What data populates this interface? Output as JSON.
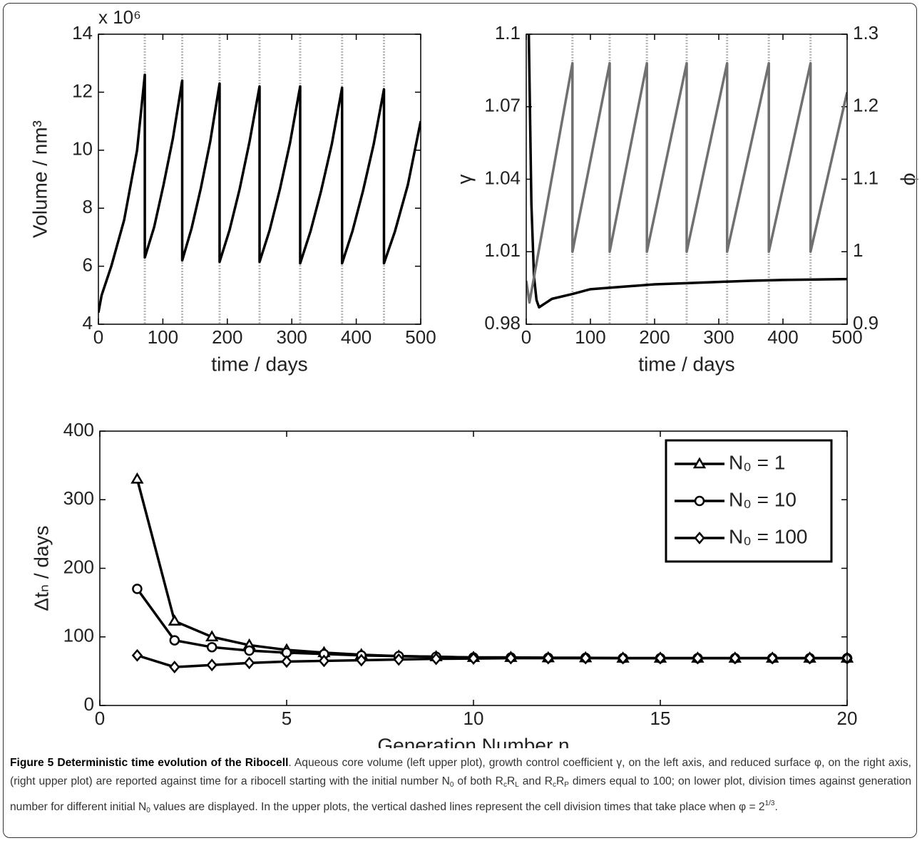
{
  "chart_data": [
    {
      "type": "line",
      "y_multiplier": "x 10⁶",
      "xlabel": "time / days",
      "ylabel": "Volume / nm³",
      "xlim": [
        0,
        500
      ],
      "xticks": [
        0,
        100,
        200,
        300,
        400,
        500
      ],
      "ylim": [
        4,
        14
      ],
      "yticks": [
        4,
        6,
        8,
        10,
        12,
        14
      ],
      "vlines": [
        72,
        130,
        188,
        250,
        313,
        378,
        443
      ],
      "series": [
        {
          "color": "#000000",
          "x": [
            0,
            5,
            20,
            40,
            60,
            72,
            72,
            86.5,
            101,
            115.5,
            130,
            130,
            144.5,
            159,
            173.5,
            188,
            188,
            203.5,
            219,
            234.5,
            250,
            250,
            265.75,
            281.5,
            297.25,
            313,
            313,
            329,
            345.5,
            362,
            378,
            378,
            394,
            410.5,
            427,
            443,
            443,
            460,
            480,
            500
          ],
          "values": [
            4.4,
            5.0,
            6.0,
            7.6,
            10.0,
            12.6,
            6.3,
            7.35,
            8.8,
            10.4,
            12.4,
            6.2,
            7.3,
            8.7,
            10.3,
            12.3,
            6.15,
            7.25,
            8.65,
            10.3,
            12.2,
            6.15,
            7.25,
            8.65,
            10.25,
            12.2,
            6.1,
            7.2,
            8.6,
            10.2,
            12.15,
            6.1,
            7.2,
            8.6,
            10.2,
            12.1,
            6.1,
            7.2,
            8.8,
            11.0
          ]
        }
      ]
    },
    {
      "type": "line",
      "xlabel": "time / days",
      "ylabel": "γ",
      "y2label": "φ",
      "xlim": [
        0,
        500
      ],
      "xticks": [
        0,
        100,
        200,
        300,
        400,
        500
      ],
      "ylim": [
        0.98,
        1.1
      ],
      "yticks": [
        0.98,
        1.01,
        1.04,
        1.07,
        1.1
      ],
      "y2lim": [
        0.9,
        1.3
      ],
      "y2ticks": [
        0.9,
        1,
        1.1,
        1.2,
        1.3
      ],
      "vlines": [
        72,
        130,
        188,
        250,
        313,
        378,
        443
      ],
      "series": [
        {
          "color": "#000000",
          "x": [
            4,
            8,
            12,
            16,
            20,
            40,
            72,
            100,
            150,
            200,
            250,
            300,
            350,
            400,
            450,
            500
          ],
          "values": [
            1.1,
            1.03,
            1.0,
            0.99,
            0.987,
            0.9905,
            0.9925,
            0.9945,
            0.9955,
            0.9965,
            0.997,
            0.9975,
            0.998,
            0.9983,
            0.9985,
            0.9987
          ]
        },
        {
          "color": "#707070",
          "axis": "y2",
          "x": [
            0,
            5,
            72,
            72,
            130,
            130,
            188,
            188,
            250,
            250,
            313,
            313,
            378,
            378,
            443,
            443,
            500
          ],
          "values": [
            0.96,
            0.93,
            1.26,
            1.0,
            1.26,
            1.0,
            1.26,
            1.0,
            1.26,
            1.0,
            1.26,
            1.0,
            1.26,
            1.0,
            1.26,
            1.0,
            1.22
          ]
        }
      ]
    },
    {
      "type": "line",
      "xlabel": "Generation Number n",
      "ylabel": "Δtₙ / days",
      "xlim": [
        0,
        20
      ],
      "xticks": [
        0,
        5,
        10,
        15,
        20
      ],
      "ylim": [
        0,
        400
      ],
      "yticks": [
        0,
        100,
        200,
        300,
        400
      ],
      "legend": "upper right",
      "x": [
        1,
        2,
        3,
        4,
        5,
        6,
        7,
        8,
        9,
        10,
        11,
        12,
        13,
        14,
        15,
        16,
        17,
        18,
        19,
        20
      ],
      "series": [
        {
          "name": "N₀ = 1",
          "color": "#000000",
          "marker": "triangle",
          "values": [
            330,
            123,
            100,
            88,
            81,
            77,
            74,
            72,
            71,
            70,
            70,
            69.5,
            69.5,
            69,
            69,
            69,
            69,
            69,
            69,
            69
          ]
        },
        {
          "name": "N₀ = 10",
          "color": "#000000",
          "marker": "circle",
          "values": [
            170,
            95,
            85,
            80,
            77,
            75,
            73,
            72,
            71,
            70,
            70,
            69.5,
            69.5,
            69,
            69,
            69,
            69,
            69,
            69,
            69
          ]
        },
        {
          "name": "N₀ = 100",
          "color": "#000000",
          "marker": "diamond",
          "values": [
            73,
            56,
            59,
            62,
            64,
            65,
            66,
            67,
            68,
            68.5,
            69,
            69,
            69,
            69,
            69,
            69,
            69,
            69,
            69,
            69
          ]
        }
      ]
    }
  ],
  "caption": {
    "segments": [
      {
        "text": "Figure 5 Deterministic time evolution of the Ribocell",
        "style": "bold"
      },
      {
        "text": ". Aqueous core volume (left upper plot), growth control coefficient γ, on the left axis, and reduced surface φ, on the right axis,(right upper plot) are reported against time for a ribocell starting with the initial number N"
      },
      {
        "text": "0",
        "style": "sub"
      },
      {
        "text": " of both R"
      },
      {
        "text": "c",
        "style": "sub"
      },
      {
        "text": "R"
      },
      {
        "text": "L",
        "style": "sub"
      },
      {
        "text": " and R"
      },
      {
        "text": "c",
        "style": "sub"
      },
      {
        "text": "R"
      },
      {
        "text": "P",
        "style": "sub"
      },
      {
        "text": " dimers equal to 100; on lower plot, division times against generation number for different initial N"
      },
      {
        "text": "0",
        "style": "sub"
      },
      {
        "text": " values are displayed. In the upper plots, the vertical dashed lines represent the cell division times that take place when φ = 2"
      },
      {
        "text": "1/3",
        "style": "sup"
      },
      {
        "text": "."
      }
    ]
  }
}
